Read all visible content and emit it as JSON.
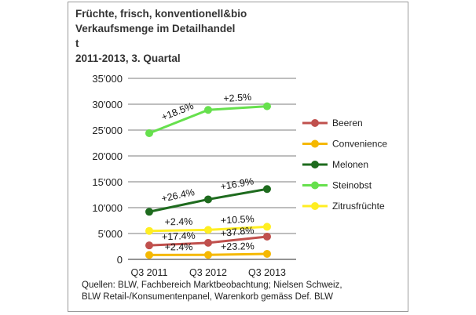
{
  "title_lines": [
    "Früchte, frisch, konventionell&bio",
    "Verkaufsmenge im Detailhandel",
    "t",
    "2011-2013, 3. Quartal"
  ],
  "source_lines": [
    "Quellen: BLW, Fachbereich Marktbeobachtung; Nielsen Schweiz,",
    "BLW Retail-/Konsumentenpanel, Warenkorb gemäss Def. BLW"
  ],
  "chart_data": {
    "type": "line",
    "title": "Früchte, frisch, konventionell&bio Verkaufsmenge im Detailhandel",
    "ylabel": "t",
    "categories": [
      "Q3 2011",
      "Q3 2012",
      "Q3 2013"
    ],
    "ylim": [
      0,
      35000
    ],
    "yticks": [
      0,
      5000,
      10000,
      15000,
      20000,
      25000,
      30000,
      35000
    ],
    "ytick_labels": [
      "0",
      "5'000",
      "10'000",
      "15'000",
      "20'000",
      "25'000",
      "30'000",
      "35'000"
    ],
    "grid": true,
    "legend_position": "right",
    "series": [
      {
        "name": "Beeren",
        "color": "#c0504d",
        "values": [
          2700,
          3200,
          4400
        ],
        "change_labels": [
          "+17.4%",
          "+37.8%"
        ]
      },
      {
        "name": "Convenience",
        "color": "#f5b800",
        "values": [
          850,
          870,
          1070
        ],
        "change_labels": [
          "+2.4%",
          "+23.2%"
        ]
      },
      {
        "name": "Melonen",
        "color": "#1e6b1e",
        "values": [
          9200,
          11600,
          13600
        ],
        "change_labels": [
          "+26.4%",
          "+16.9%"
        ]
      },
      {
        "name": "Steinobst",
        "color": "#66e04d",
        "values": [
          24400,
          28900,
          29600
        ],
        "change_labels": [
          "+18.5%",
          "+2.5%"
        ]
      },
      {
        "name": "Zitrusfrüchte",
        "color": "#ffee22",
        "values": [
          5500,
          5700,
          6300
        ],
        "change_labels": [
          "+2.4%",
          "+10.5%"
        ]
      }
    ]
  }
}
